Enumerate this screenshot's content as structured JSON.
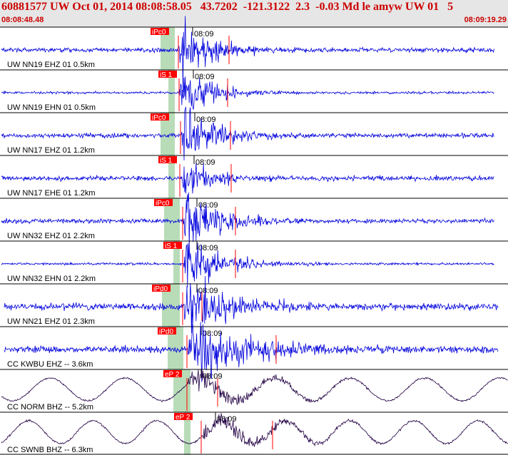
{
  "header": {
    "title": "60881577 UW Oct 01, 2014 08:08:58.05   43.7202  -121.3122  2.3  -0.03 Md le amyw UW 01   5",
    "start_time": "08:08:48.48",
    "end_time": "08:09:19.29"
  },
  "minute_tick_label": "08:09",
  "colors": {
    "waveform": "#0000dd",
    "broadband": "#220044",
    "pick": "#ff0000",
    "shading": "#b8dcb8",
    "title": "#cc0000"
  },
  "traces": [
    {
      "label": "UW NN19 EHZ 01 0.5km",
      "pick": "iPc0",
      "type": "sp"
    },
    {
      "label": "UW NN19 EHN 01 0.5km",
      "pick": "iS 1",
      "type": "sp"
    },
    {
      "label": "UW NN17 EHZ 01 1.2km",
      "pick": "iPc0",
      "type": "sp"
    },
    {
      "label": "UW NN17 EHE 01 1.2km",
      "pick": "iS 1",
      "type": "sp"
    },
    {
      "label": "UW NN32 EHZ 01 2.2km",
      "pick": "iPc0",
      "type": "sp"
    },
    {
      "label": "UW NN32 EHN 01 2.2km",
      "pick": "iS 1",
      "type": "sp"
    },
    {
      "label": "UW NN21 EHZ 01 2.3km",
      "pick": "iPd0",
      "type": "sp"
    },
    {
      "label": "CC KWBU EHZ -- 3.6km",
      "pick": "iPd0",
      "type": "sp"
    },
    {
      "label": "CC NORM BHZ -- 5.2km",
      "pick": "eP 2",
      "type": "bb"
    },
    {
      "label": "CC SWNB BHZ -- 6.3km",
      "pick": "eP 2",
      "type": "bb"
    }
  ]
}
